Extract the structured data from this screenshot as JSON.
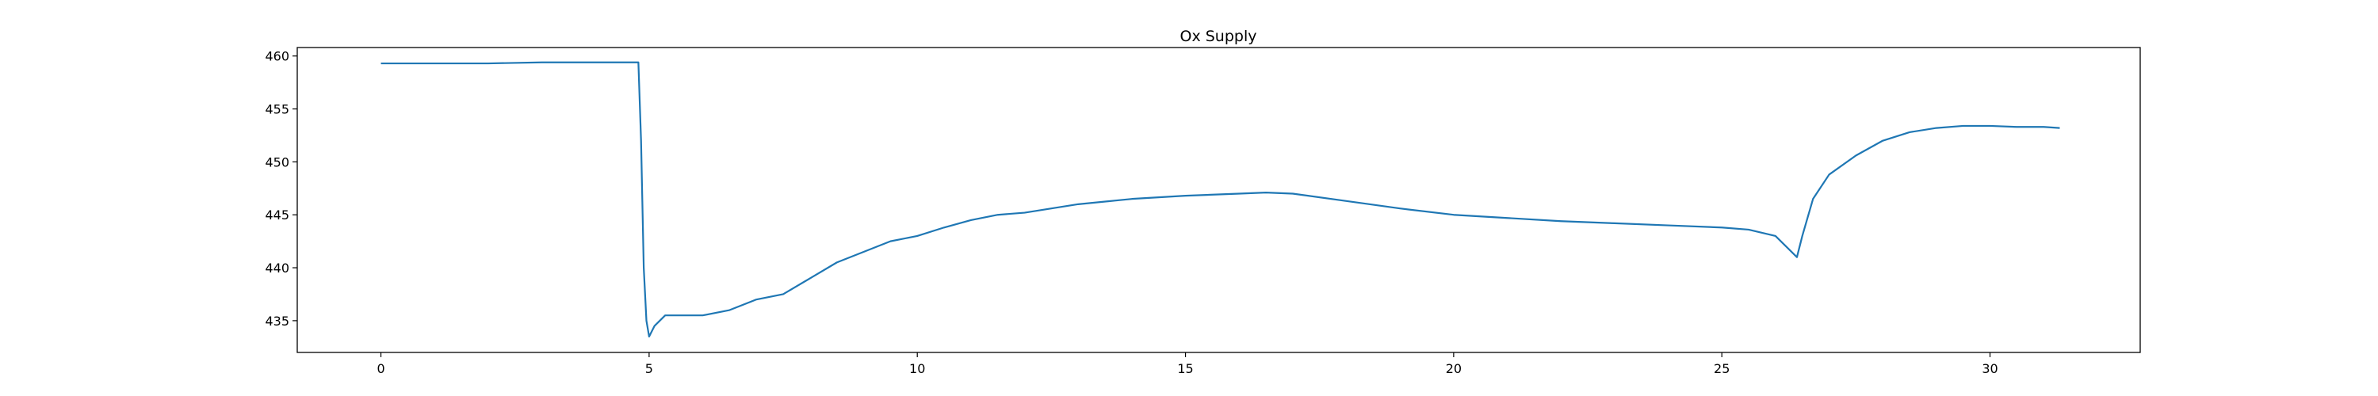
{
  "chart_data": {
    "type": "line",
    "title": "Ox Supply",
    "xlabel": "",
    "ylabel": "",
    "xlim": [
      -1.56,
      32.8
    ],
    "ylim": [
      432.0,
      460.8
    ],
    "x_ticks": [
      0,
      5,
      10,
      15,
      20,
      25,
      30
    ],
    "y_ticks": [
      435,
      440,
      445,
      450,
      455,
      460
    ],
    "x_tick_labels": [
      "0",
      "5",
      "10",
      "15",
      "20",
      "25",
      "30"
    ],
    "y_tick_labels": [
      "435",
      "440",
      "445",
      "450",
      "455",
      "460"
    ],
    "grid": false,
    "legend": "none",
    "line_color": "#1f77b4",
    "series": [
      {
        "x": [
          0,
          1,
          2,
          3,
          4,
          4.8,
          4.85,
          4.9,
          4.95,
          5.0,
          5.1,
          5.3,
          5.6,
          6.0,
          6.5,
          7.0,
          7.5,
          8.0,
          8.5,
          9.0,
          9.5,
          10.0,
          10.5,
          11.0,
          11.5,
          12.0,
          12.5,
          13.0,
          14.0,
          15.0,
          16.0,
          16.5,
          17.0,
          18.0,
          19.0,
          20.0,
          21.0,
          22.0,
          23.0,
          24.0,
          25.0,
          25.5,
          26.0,
          26.2,
          26.4,
          26.5,
          26.7,
          27.0,
          27.5,
          28.0,
          28.5,
          29.0,
          29.5,
          30.0,
          30.5,
          31.0,
          31.3
        ],
        "y": [
          459.3,
          459.3,
          459.3,
          459.4,
          459.4,
          459.4,
          452.0,
          440.0,
          435.0,
          433.5,
          434.5,
          435.5,
          435.5,
          435.5,
          436.0,
          437.0,
          437.5,
          439.0,
          440.5,
          441.5,
          442.5,
          443.0,
          443.8,
          444.5,
          445.0,
          445.2,
          445.6,
          446.0,
          446.5,
          446.8,
          447.0,
          447.1,
          447.0,
          446.3,
          445.6,
          445.0,
          444.7,
          444.4,
          444.2,
          444.0,
          443.8,
          443.6,
          443.0,
          442.0,
          441.0,
          443.0,
          446.5,
          448.8,
          450.6,
          452.0,
          452.8,
          453.2,
          453.4,
          453.4,
          453.3,
          453.3,
          453.2
        ]
      }
    ]
  }
}
